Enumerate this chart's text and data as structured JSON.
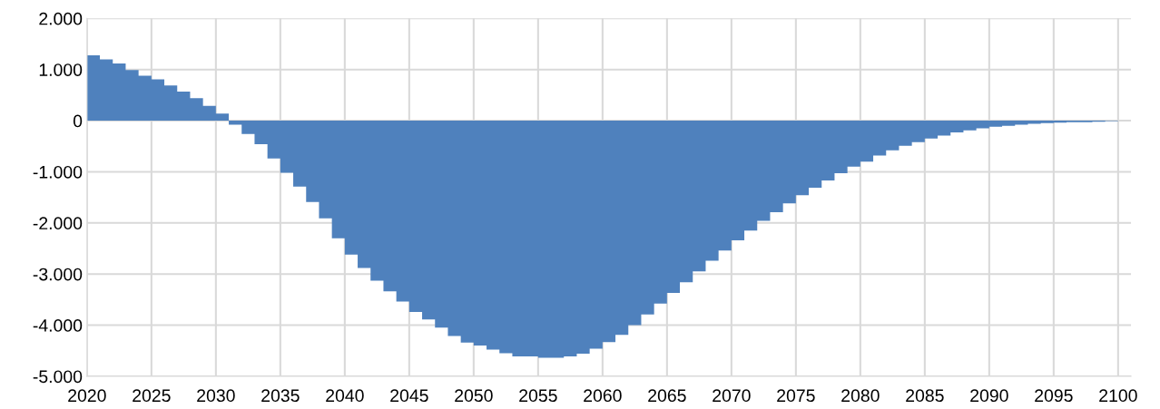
{
  "chart_data": {
    "type": "area",
    "color": "#4f81bd",
    "x": [
      2020,
      2021,
      2022,
      2023,
      2024,
      2025,
      2026,
      2027,
      2028,
      2029,
      2030,
      2031,
      2032,
      2033,
      2034,
      2035,
      2036,
      2037,
      2038,
      2039,
      2040,
      2041,
      2042,
      2043,
      2044,
      2045,
      2046,
      2047,
      2048,
      2049,
      2050,
      2051,
      2052,
      2053,
      2054,
      2055,
      2056,
      2057,
      2058,
      2059,
      2060,
      2061,
      2062,
      2063,
      2064,
      2065,
      2066,
      2067,
      2068,
      2069,
      2070,
      2071,
      2072,
      2073,
      2074,
      2075,
      2076,
      2077,
      2078,
      2079,
      2080,
      2081,
      2082,
      2083,
      2084,
      2085,
      2086,
      2087,
      2088,
      2089,
      2090,
      2091,
      2092,
      2093,
      2094,
      2095,
      2096,
      2097,
      2098,
      2099,
      2100
    ],
    "values": [
      1280,
      1200,
      1120,
      990,
      880,
      810,
      690,
      570,
      440,
      290,
      140,
      -80,
      -260,
      -460,
      -740,
      -1020,
      -1290,
      -1590,
      -1910,
      -2300,
      -2620,
      -2880,
      -3130,
      -3340,
      -3540,
      -3740,
      -3890,
      -4050,
      -4210,
      -4340,
      -4400,
      -4480,
      -4550,
      -4610,
      -4610,
      -4640,
      -4640,
      -4610,
      -4560,
      -4460,
      -4330,
      -4190,
      -4000,
      -3790,
      -3580,
      -3370,
      -3160,
      -2950,
      -2740,
      -2540,
      -2340,
      -2150,
      -1960,
      -1790,
      -1620,
      -1460,
      -1310,
      -1170,
      -1030,
      -900,
      -800,
      -680,
      -580,
      -490,
      -420,
      -350,
      -290,
      -230,
      -190,
      -150,
      -120,
      -100,
      -80,
      -60,
      -50,
      -40,
      -30,
      -30,
      -20,
      -10,
      0
    ],
    "xlim": [
      2020,
      2101
    ],
    "xticks": [
      2020,
      2025,
      2030,
      2035,
      2040,
      2045,
      2050,
      2055,
      2060,
      2065,
      2070,
      2075,
      2080,
      2085,
      2090,
      2095,
      2100
    ],
    "ylim": [
      -5000,
      2000
    ],
    "yticks": [
      {
        "value": -5000,
        "label": "-5.000"
      },
      {
        "value": -4000,
        "label": "-4.000"
      },
      {
        "value": -3000,
        "label": "-3.000"
      },
      {
        "value": -2000,
        "label": "-2.000"
      },
      {
        "value": -1000,
        "label": "-1.000"
      },
      0,
      {
        "value": 1000,
        "label": "1.000"
      },
      {
        "value": 2000,
        "label": "2.000"
      }
    ],
    "grid": true
  }
}
